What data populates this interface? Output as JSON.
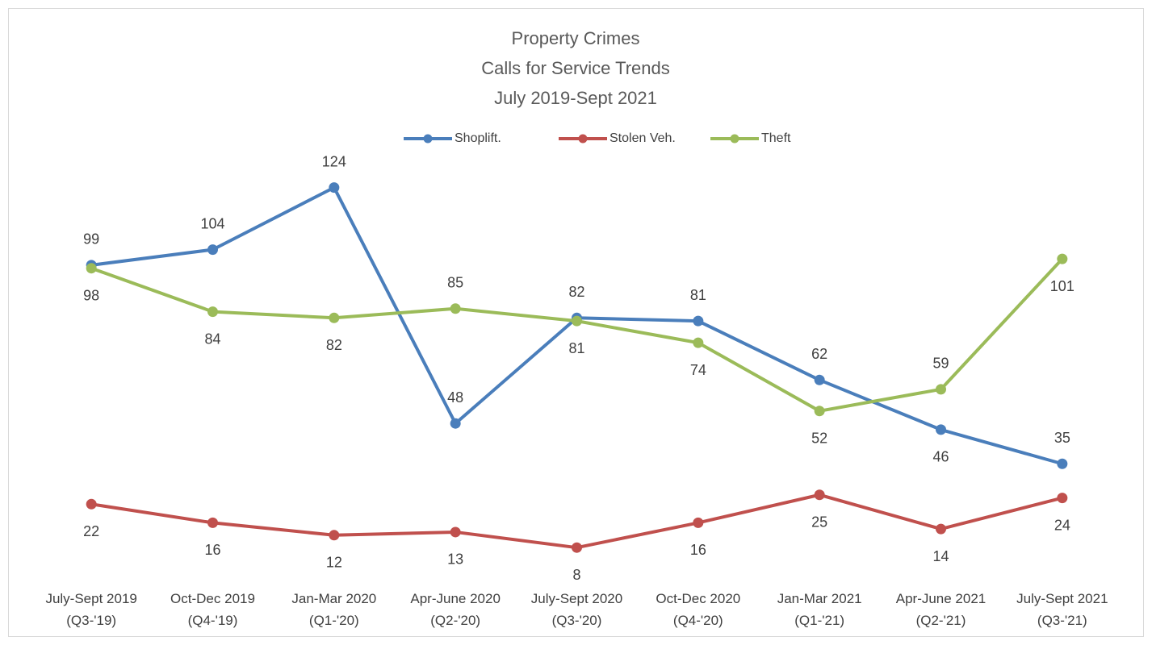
{
  "chart_data": {
    "type": "line",
    "title": [
      "Property Crimes",
      "Calls for Service Trends",
      "July 2019-Sept 2021"
    ],
    "categories": [
      [
        "July-Sept 2019",
        "(Q3-'19)"
      ],
      [
        "Oct-Dec 2019",
        "(Q4-'19)"
      ],
      [
        "Jan-Mar 2020",
        "(Q1-'20)"
      ],
      [
        "Apr-June 2020",
        "(Q2-'20)"
      ],
      [
        "July-Sept 2020",
        "(Q3-'20)"
      ],
      [
        "Oct-Dec 2020",
        "(Q4-'20)"
      ],
      [
        "Jan-Mar 2021",
        "(Q1-'21)"
      ],
      [
        "Apr-June 2021",
        "(Q2-'21)"
      ],
      [
        "July-Sept 2021",
        "(Q3-'21)"
      ]
    ],
    "series": [
      {
        "name": "Shoplift.",
        "color": "#4a7ebb",
        "values": [
          99,
          104,
          124,
          48,
          82,
          81,
          62,
          46,
          35
        ]
      },
      {
        "name": "Stolen Veh.",
        "color": "#c0504d",
        "values": [
          22,
          16,
          12,
          13,
          8,
          16,
          25,
          14,
          24
        ]
      },
      {
        "name": "Theft",
        "color": "#9bbb59",
        "values": [
          98,
          84,
          82,
          85,
          81,
          74,
          52,
          59,
          101
        ]
      }
    ],
    "ylim": [
      0,
      140
    ],
    "legend": "top"
  }
}
